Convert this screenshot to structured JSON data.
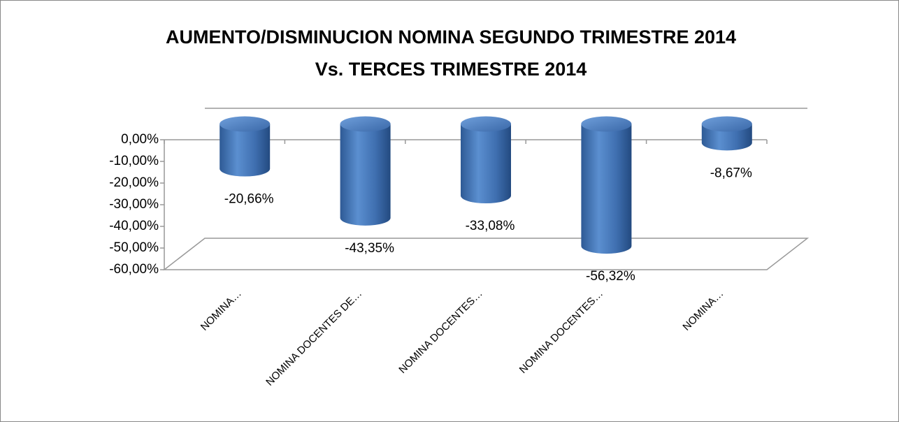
{
  "chart_data": {
    "type": "bar3d",
    "title": [
      "AUMENTO/DISMINUCION NOMINA SEGUNDO TRIMESTRE 2014",
      "Vs. TERCES TRIMESTRE  2014"
    ],
    "categories": [
      "NOMINA…",
      "NOMINA DOCENTES DE…",
      "NOMINA DOCENTES…",
      "NOMINA DOCENTES…",
      "NOMINA…"
    ],
    "values": [
      -20.66,
      -43.35,
      -33.08,
      -56.32,
      -8.67
    ],
    "value_labels": [
      "-20,66%",
      "-43,35%",
      "-33,08%",
      "-56,32%",
      "-8,67%"
    ],
    "color": "#4f81bd",
    "ylim": [
      -60,
      0
    ],
    "yticks": [
      {
        "value": 0,
        "label": "0,00%"
      },
      {
        "value": -10,
        "label": "-10,00%"
      },
      {
        "value": -20,
        "label": "-20,00%"
      },
      {
        "value": -30,
        "label": "-30,00%"
      },
      {
        "value": -40,
        "label": "-40,00%"
      },
      {
        "value": -50,
        "label": "-50,00%"
      },
      {
        "value": -60,
        "label": "-60,00%"
      }
    ]
  }
}
